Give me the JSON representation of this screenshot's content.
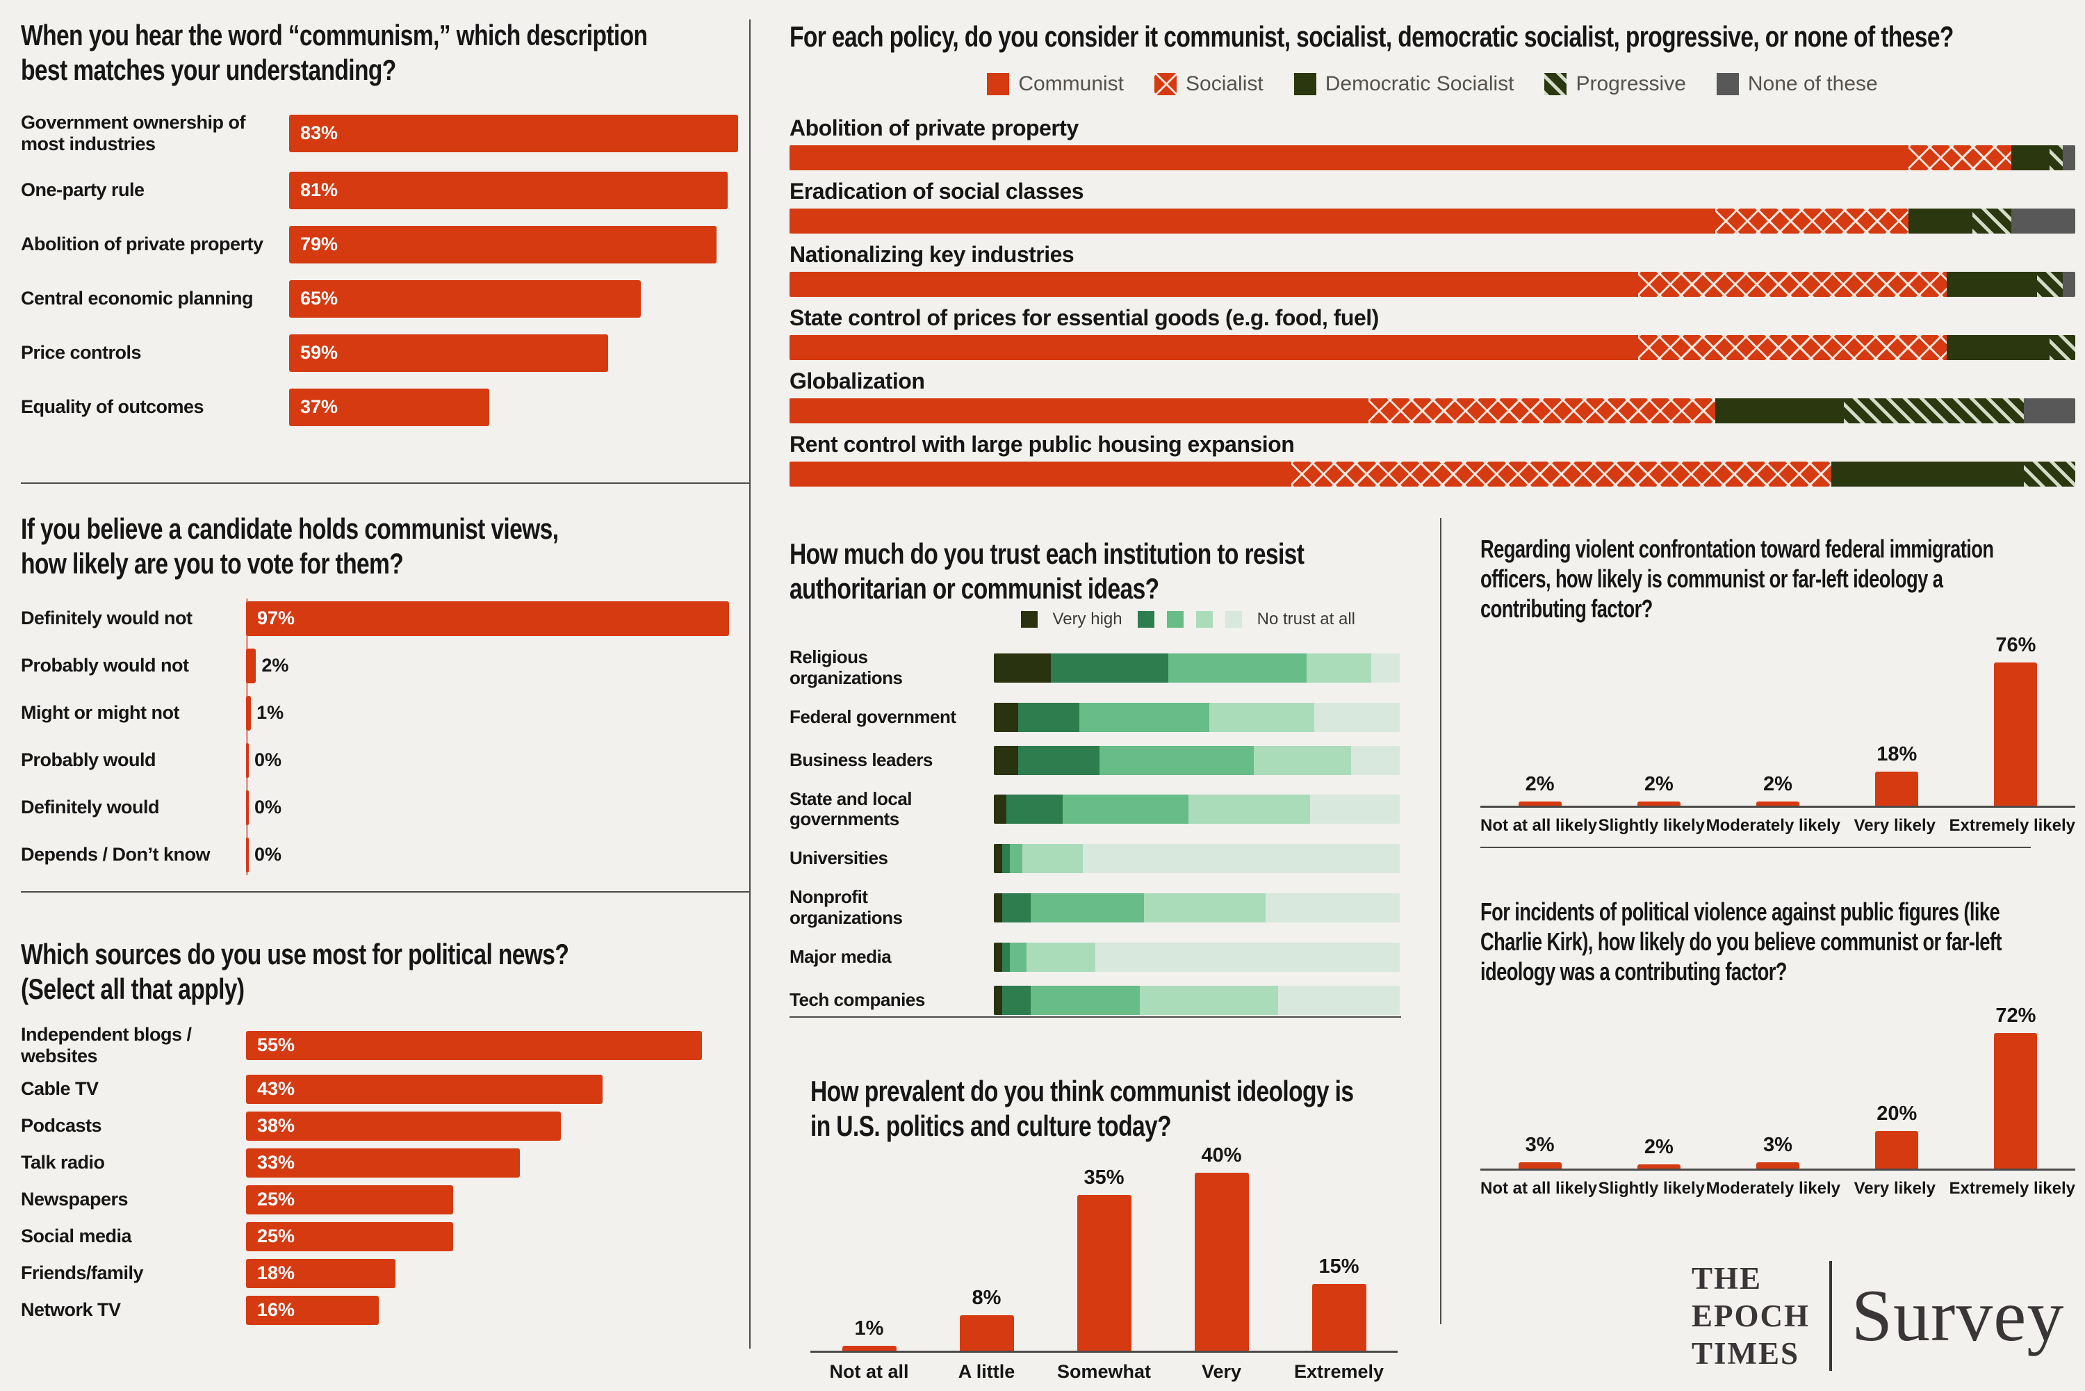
{
  "colors": {
    "background": "#f2f1ee",
    "text": "#161616",
    "red": "#d63a10",
    "dark_green": "#2b370e",
    "none_gray": "#585858",
    "rule_gray": "#4b4b4b",
    "trust_palette": [
      "#2a330f",
      "#2e7d4e",
      "#67bc88",
      "#abdcba",
      "#d9e8dc"
    ]
  },
  "logo": {
    "brand_lines": [
      "THE",
      "EPOCH",
      "TIMES"
    ],
    "product": "Survey"
  },
  "chart_data": [
    {
      "id": "understanding",
      "type": "bar",
      "orientation": "horizontal",
      "title": "When you hear the word “communism,” which description\nbest matches your understanding?",
      "categories": [
        "Government ownership of most industries",
        "One-party rule",
        "Abolition of private property",
        "Central economic planning",
        "Price controls",
        "Equality of outcomes"
      ],
      "values": [
        83,
        81,
        79,
        65,
        59,
        37
      ],
      "unit": "%",
      "xmax": 84,
      "bar_color": "#d63a10",
      "grid": false
    },
    {
      "id": "vote",
      "type": "bar",
      "orientation": "horizontal",
      "title": "If you believe a candidate holds communist views,\nhow likely are you to vote for them?",
      "categories": [
        "Definitely would not",
        "Probably would not",
        "Might or might not",
        "Probably would",
        "Definitely would",
        "Depends / Don’t know"
      ],
      "values": [
        97,
        2,
        1,
        0,
        0,
        0
      ],
      "unit": "%",
      "xmax": 100,
      "bar_color": "#d63a10",
      "grid": false
    },
    {
      "id": "news_sources",
      "type": "bar",
      "orientation": "horizontal",
      "title": "Which sources do you use most for political news?\n(Select all that apply)",
      "categories": [
        "Independent blogs / websites",
        "Cable TV",
        "Podcasts",
        "Talk radio",
        "Newspapers",
        "Social media",
        "Friends/family",
        "Network TV"
      ],
      "values": [
        55,
        43,
        38,
        33,
        25,
        25,
        18,
        16
      ],
      "unit": "%",
      "xmax": 60,
      "bar_color": "#d63a10",
      "grid": false
    },
    {
      "id": "policy",
      "type": "stacked-bar",
      "orientation": "horizontal",
      "title": "For each policy, do you consider it communist, socialist, democratic socialist, progressive, or none of these?",
      "legend": [
        "Communist",
        "Socialist",
        "Democratic Socialist",
        "Progressive",
        "None of these"
      ],
      "legend_keys": [
        "communist",
        "socialist",
        "demsoc",
        "progressive",
        "none"
      ],
      "legend_position": "top-center",
      "total": 100,
      "unit": "%",
      "rows": [
        {
          "label": "Abolition of private property",
          "values": [
            87,
            8,
            3,
            1,
            1
          ]
        },
        {
          "label": "Eradication of social classes",
          "values": [
            72,
            15,
            5,
            3,
            5
          ]
        },
        {
          "label": "Nationalizing key industries",
          "values": [
            66,
            24,
            7,
            2,
            1
          ]
        },
        {
          "label": "State control of prices for essential goods (e.g. food, fuel)",
          "values": [
            66,
            24,
            8,
            2,
            0
          ]
        },
        {
          "label": "Globalization",
          "values": [
            45,
            27,
            10,
            14,
            4
          ]
        },
        {
          "label": "Rent control with large public housing expansion",
          "values": [
            39,
            42,
            15,
            4,
            0
          ]
        }
      ]
    },
    {
      "id": "trust",
      "type": "stacked-bar",
      "orientation": "horizontal",
      "title": "How much do you trust each institution to resist\nauthoritarian or communist ideas?",
      "legend": {
        "high_label": "Very high",
        "low_label": "No trust at all",
        "levels": 5
      },
      "legend_position": "top-right",
      "total": 100,
      "unit": "%",
      "rows": [
        {
          "label": "Religious organizations",
          "values": [
            14,
            29,
            34,
            16,
            7
          ]
        },
        {
          "label": "Federal government",
          "values": [
            6,
            15,
            32,
            26,
            21
          ]
        },
        {
          "label": "Business leaders",
          "values": [
            6,
            20,
            38,
            24,
            12
          ]
        },
        {
          "label": "State and local governments",
          "values": [
            3,
            14,
            31,
            30,
            22
          ]
        },
        {
          "label": "Universities",
          "values": [
            2,
            2,
            3,
            15,
            78
          ]
        },
        {
          "label": "Nonprofit organizations",
          "values": [
            2,
            7,
            28,
            30,
            33
          ]
        },
        {
          "label": "Major media",
          "values": [
            2,
            2,
            4,
            17,
            75
          ]
        },
        {
          "label": "Tech companies",
          "values": [
            2,
            7,
            27,
            34,
            30
          ]
        }
      ]
    },
    {
      "id": "prevalence",
      "type": "bar",
      "orientation": "vertical",
      "title": "How prevalent do you think communist ideology is\nin U.S. politics and culture today?",
      "categories": [
        "Not at all",
        "A little",
        "Somewhat",
        "Very",
        "Extremely"
      ],
      "values": [
        1,
        8,
        35,
        40,
        15
      ],
      "unit": "%",
      "ymax": 45,
      "bar_color": "#d63a10",
      "grid": false
    },
    {
      "id": "immigration",
      "type": "bar",
      "orientation": "vertical",
      "title": "Regarding violent confrontation toward federal immigration\nofficers, how likely is communist or far-left ideology a\ncontributing factor?",
      "categories": [
        "Not at all likely",
        "Slightly likely",
        "Moderately likely",
        "Very likely",
        "Extremely likely"
      ],
      "values": [
        2,
        2,
        2,
        18,
        76
      ],
      "unit": "%",
      "ymax": 80,
      "bar_color": "#d63a10",
      "grid": false
    },
    {
      "id": "violence",
      "type": "bar",
      "orientation": "vertical",
      "title": "For incidents of political violence against public figures (like\nCharlie Kirk), how likely do you believe communist or far-left\nideology was a contributing factor?",
      "categories": [
        "Not at all likely",
        "Slightly likely",
        "Moderately likely",
        "Very likely",
        "Extremely likely"
      ],
      "values": [
        3,
        2,
        3,
        20,
        72
      ],
      "unit": "%",
      "ymax": 80,
      "bar_color": "#d63a10",
      "grid": false
    }
  ]
}
